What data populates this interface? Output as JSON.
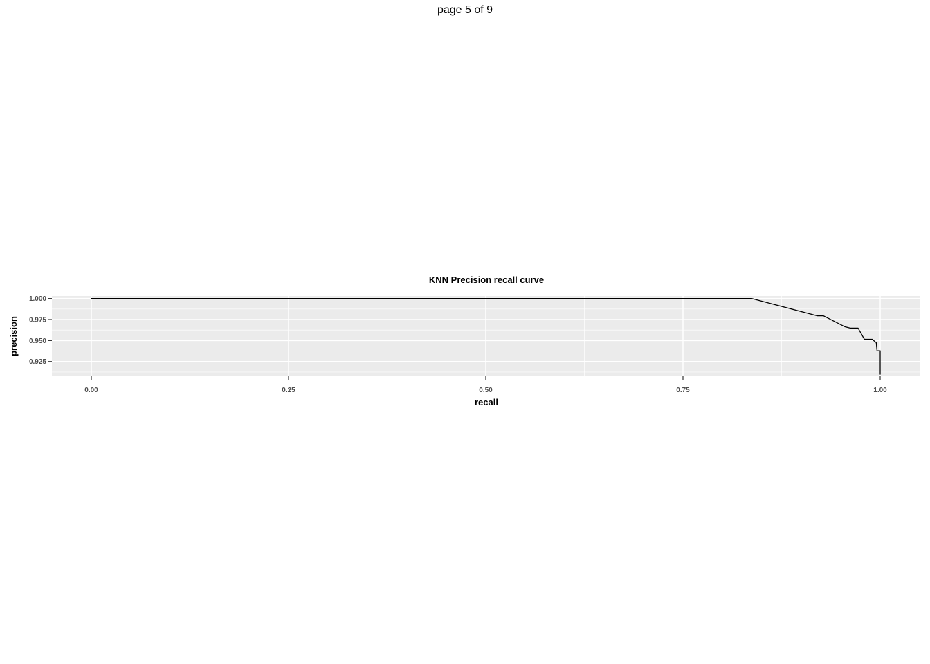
{
  "page": {
    "header": "page 5 of 9"
  },
  "chart_data": {
    "type": "line",
    "title": "KNN Precision recall curve",
    "xlabel": "recall",
    "ylabel": "precision",
    "xlim": [
      -0.05,
      1.05
    ],
    "ylim": [
      0.9075,
      1.003
    ],
    "x_ticks": [
      0.0,
      0.25,
      0.5,
      0.75,
      1.0
    ],
    "x_tick_labels": [
      "0.00",
      "0.25",
      "0.50",
      "0.75",
      "1.00"
    ],
    "y_ticks": [
      0.925,
      0.95,
      0.975,
      1.0
    ],
    "y_tick_labels": [
      "0.925",
      "0.950",
      "0.975",
      "1.000"
    ],
    "grid": true,
    "panel_background": "#ebebeb",
    "grid_color": "#ffffff",
    "line_color": "#000000",
    "series": [
      {
        "x": [
          0.0,
          0.837,
          0.92,
          0.928,
          0.955,
          0.962,
          0.972,
          0.98,
          0.99,
          0.993,
          0.995,
          0.996,
          0.999,
          1.0,
          1.0
        ],
        "y": [
          1.0,
          1.0,
          0.9795,
          0.9795,
          0.9665,
          0.9648,
          0.9648,
          0.9515,
          0.9515,
          0.949,
          0.9475,
          0.9378,
          0.9378,
          0.9378,
          0.9095
        ]
      }
    ]
  }
}
